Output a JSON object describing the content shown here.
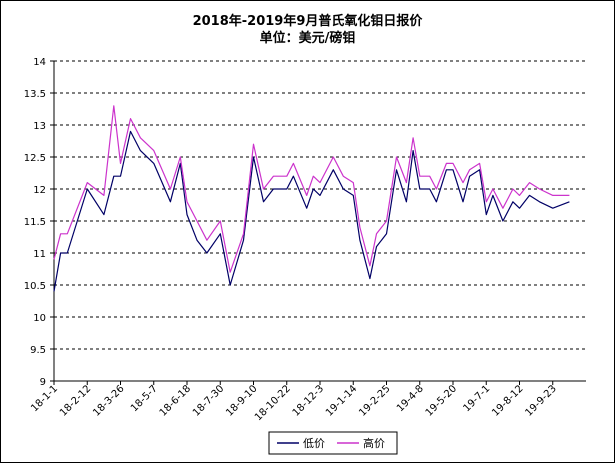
{
  "chart_data": {
    "type": "line",
    "title": "2018年-2019年9月普氏氧化钼日报价",
    "subtitle": "单位：美元/磅钼",
    "ylim": [
      9,
      14
    ],
    "yticks": [
      9,
      9.5,
      10,
      10.5,
      11,
      11.5,
      12,
      12.5,
      13,
      13.5,
      14
    ],
    "grid": true,
    "legend_position": "bottom-right",
    "x_tick_labels": [
      "18-1-1",
      "18-2-12",
      "18-3-26",
      "18-5-7",
      "18-6-18",
      "18-7-30",
      "18-9-10",
      "18-10-22",
      "18-12-3",
      "19-1-14",
      "19-2-25",
      "19-4-8",
      "19-5-20",
      "19-7-1",
      "19-8-12",
      "19-9-23"
    ],
    "x_knots": [
      0,
      0.2,
      0.4,
      1,
      1.5,
      1.8,
      2,
      2.3,
      2.6,
      3,
      3.5,
      3.8,
      4,
      4.3,
      4.6,
      5,
      5.3,
      5.7,
      6,
      6.3,
      6.6,
      7,
      7.2,
      7.6,
      7.8,
      8,
      8.4,
      8.7,
      9,
      9.2,
      9.5,
      9.7,
      10,
      10.3,
      10.6,
      10.8,
      11,
      11.3,
      11.5,
      11.8,
      12,
      12.3,
      12.5,
      12.8,
      13,
      13.2,
      13.5,
      13.8,
      14,
      14.3,
      14.6,
      15,
      15.5
    ],
    "series": [
      {
        "name": "低价",
        "color": "#000066",
        "values": [
          10.4,
          11.0,
          11.0,
          12.0,
          11.6,
          12.2,
          12.2,
          12.9,
          12.6,
          12.4,
          11.8,
          12.4,
          11.6,
          11.2,
          11.0,
          11.3,
          10.5,
          11.2,
          12.5,
          11.8,
          12.0,
          12.0,
          12.2,
          11.7,
          12.0,
          11.9,
          12.3,
          12.0,
          11.9,
          11.2,
          10.6,
          11.1,
          11.3,
          12.3,
          11.8,
          12.6,
          12.0,
          12.0,
          11.8,
          12.3,
          12.3,
          11.8,
          12.2,
          12.3,
          11.6,
          11.9,
          11.5,
          11.8,
          11.7,
          11.9,
          11.8,
          11.7,
          11.8
        ]
      },
      {
        "name": "高价",
        "color": "#cc33cc",
        "values": [
          10.9,
          11.3,
          11.3,
          12.1,
          11.9,
          13.3,
          12.4,
          13.1,
          12.8,
          12.6,
          12.0,
          12.5,
          11.8,
          11.5,
          11.2,
          11.5,
          10.7,
          11.3,
          12.7,
          12.0,
          12.2,
          12.2,
          12.4,
          11.9,
          12.2,
          12.1,
          12.5,
          12.2,
          12.1,
          11.4,
          10.8,
          11.3,
          11.5,
          12.5,
          12.1,
          12.8,
          12.2,
          12.2,
          12.0,
          12.4,
          12.4,
          12.1,
          12.3,
          12.4,
          11.8,
          12.0,
          11.7,
          12.0,
          11.9,
          12.1,
          12.0,
          11.9,
          11.9
        ]
      }
    ]
  }
}
